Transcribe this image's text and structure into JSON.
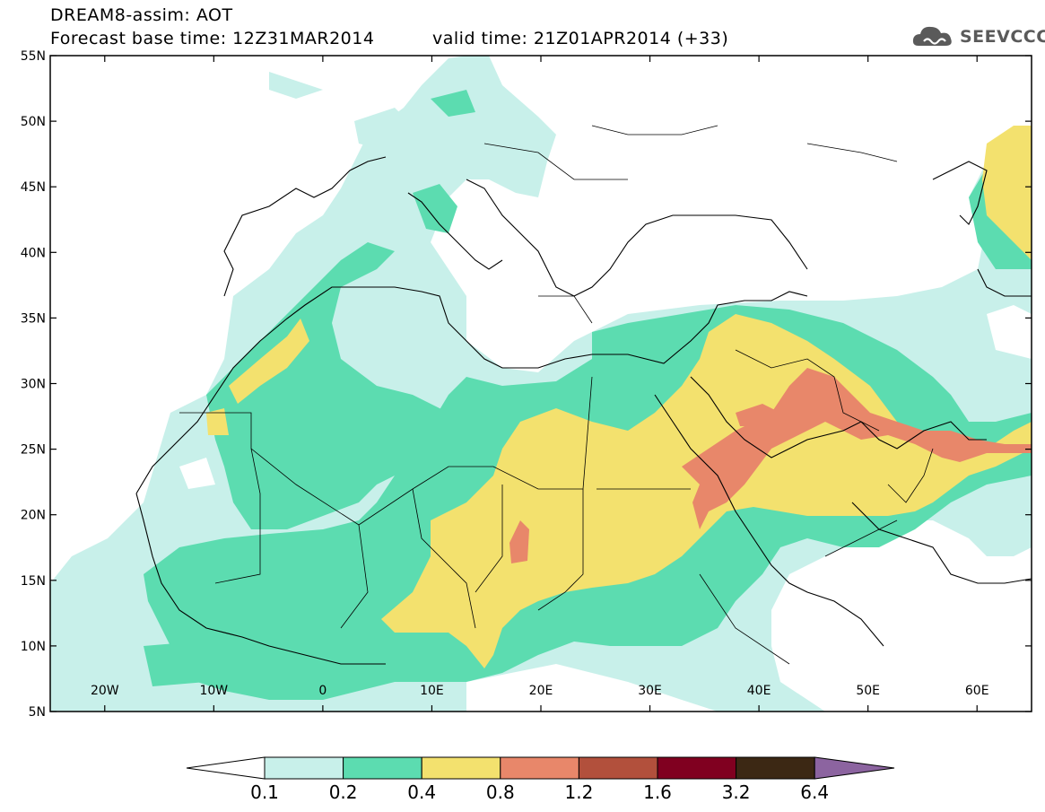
{
  "header": {
    "title_line1": "DREAM8-assim: AOT",
    "title_line2": "Forecast base time: 12Z31MAR2014",
    "valid_time": "valid time: 21Z01APR2014 (+33)",
    "logo_text": "SEEVCCC"
  },
  "map": {
    "lon_range": [
      -25,
      65
    ],
    "lat_range": [
      5,
      55
    ],
    "lon_ticks": [
      "20W",
      "10W",
      "0",
      "10E",
      "20E",
      "30E",
      "40E",
      "50E",
      "60E"
    ],
    "lat_ticks": [
      "55N",
      "50N",
      "45N",
      "40N",
      "35N",
      "30N",
      "25N",
      "20N",
      "15N",
      "10N",
      "5N"
    ]
  },
  "colorbar": {
    "labels": [
      "0.1",
      "0.2",
      "0.4",
      "0.8",
      "1.2",
      "1.6",
      "3.2",
      "6.4"
    ],
    "colors": [
      "#ffffff",
      "#c8f0ea",
      "#5cdcb0",
      "#f3e16e",
      "#e8876a",
      "#b2503c",
      "#800020",
      "#3c2814",
      "#8c64a0"
    ]
  },
  "colors": {
    "c1": "#c8f0ea",
    "c2": "#5cdcb0",
    "c3": "#f3e16e",
    "c4": "#e8876a",
    "c5": "#b2503c",
    "coast": "#000000"
  }
}
